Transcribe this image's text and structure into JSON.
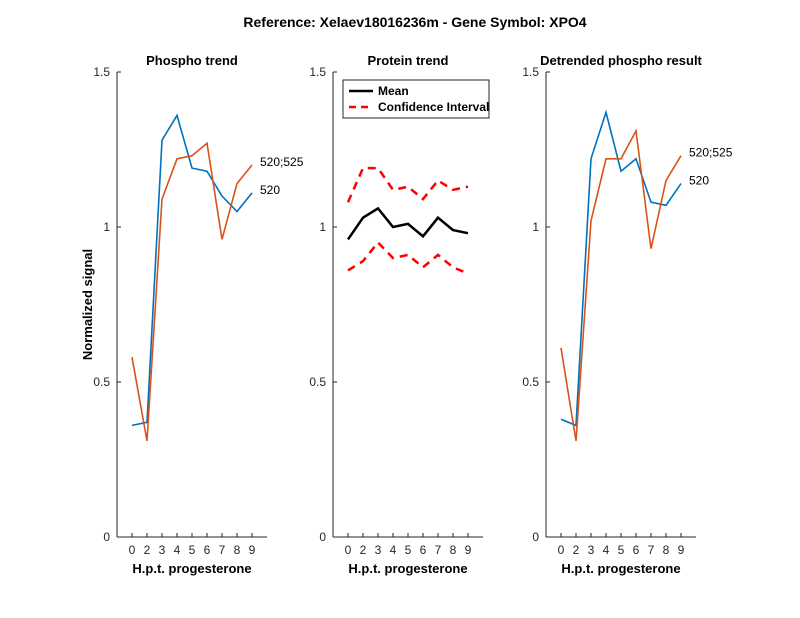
{
  "figure": {
    "title": "Reference:  Xelaev18016236m - Gene Symbol:  XPO4"
  },
  "chart_data": [
    {
      "type": "line",
      "title": "Phospho trend",
      "xlabel": "H.p.t. progesterone",
      "ylabel": "Normalized signal",
      "x": [
        0,
        2,
        3,
        4,
        5,
        6,
        7,
        8,
        9
      ],
      "xticks": [
        "0",
        "2",
        "3",
        "4",
        "5",
        "6",
        "7",
        "8",
        "9"
      ],
      "ylim": [
        0,
        1.5
      ],
      "yticks": [
        "0",
        "0.5",
        "1",
        "1.5"
      ],
      "grid": false,
      "series": [
        {
          "name": "520",
          "color": "#0072BD",
          "dashed": false,
          "values": [
            0.36,
            0.37,
            1.28,
            1.36,
            1.19,
            1.18,
            1.1,
            1.05,
            1.11
          ]
        },
        {
          "name": "520;525",
          "color": "#D95319",
          "dashed": false,
          "values": [
            0.58,
            0.31,
            1.09,
            1.22,
            1.23,
            1.27,
            0.96,
            1.14,
            1.2
          ]
        }
      ]
    },
    {
      "type": "line",
      "title": "Protein trend",
      "xlabel": "H.p.t. progesterone",
      "ylabel": "",
      "x": [
        0,
        2,
        3,
        4,
        5,
        6,
        7,
        8,
        9
      ],
      "xticks": [
        "0",
        "2",
        "3",
        "4",
        "5",
        "6",
        "7",
        "8",
        "9"
      ],
      "ylim": [
        0,
        1.5
      ],
      "yticks": [
        "0",
        "0.5",
        "1",
        "1.5"
      ],
      "grid": false,
      "legend": {
        "location": "top-left",
        "entries": [
          "Mean",
          "Confidence Interval"
        ]
      },
      "series": [
        {
          "name": "Mean",
          "color": "#000000",
          "dashed": false,
          "values": [
            0.96,
            1.03,
            1.06,
            1.0,
            1.01,
            0.97,
            1.03,
            0.99,
            0.98
          ]
        },
        {
          "name": "Confidence Interval",
          "color": "#FF0000",
          "dashed": true,
          "values": [
            1.08,
            1.19,
            1.19,
            1.12,
            1.13,
            1.09,
            1.15,
            1.12,
            1.13
          ]
        },
        {
          "name": "Confidence Interval",
          "color": "#FF0000",
          "dashed": true,
          "values": [
            0.86,
            0.89,
            0.95,
            0.9,
            0.91,
            0.87,
            0.91,
            0.87,
            0.85
          ]
        }
      ]
    },
    {
      "type": "line",
      "title": "Detrended phospho result",
      "xlabel": "H.p.t. progesterone",
      "ylabel": "",
      "x": [
        0,
        2,
        3,
        4,
        5,
        6,
        7,
        8,
        9
      ],
      "xticks": [
        "0",
        "2",
        "3",
        "4",
        "5",
        "6",
        "7",
        "8",
        "9"
      ],
      "ylim": [
        0,
        1.5
      ],
      "yticks": [
        "0",
        "0.5",
        "1",
        "1.5"
      ],
      "grid": false,
      "series": [
        {
          "name": "520",
          "color": "#0072BD",
          "dashed": false,
          "values": [
            0.38,
            0.36,
            1.22,
            1.37,
            1.18,
            1.22,
            1.08,
            1.07,
            1.14
          ]
        },
        {
          "name": "520;525",
          "color": "#D95319",
          "dashed": false,
          "values": [
            0.61,
            0.31,
            1.02,
            1.22,
            1.22,
            1.31,
            0.93,
            1.15,
            1.23
          ]
        }
      ]
    }
  ]
}
